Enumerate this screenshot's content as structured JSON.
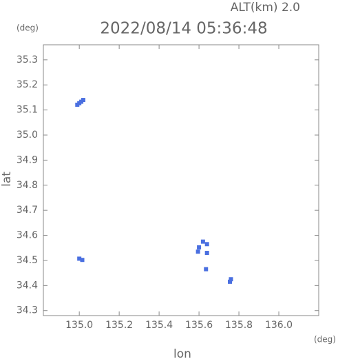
{
  "chart_data": {
    "type": "scatter",
    "title": "2022/08/14 05:36:48",
    "subtitle": "ALT(km) 2.0",
    "xlabel": "lon",
    "ylabel": "lat",
    "xunit": "(deg)",
    "yunit": "(deg)",
    "x": [
      135.02,
      135.01,
      135.0,
      134.99,
      135.0,
      135.015,
      135.6,
      135.595,
      135.62,
      135.64,
      135.64,
      135.635,
      135.76,
      135.755
    ],
    "values": [
      35.14,
      35.133,
      35.127,
      35.121,
      34.507,
      34.502,
      34.552,
      34.535,
      34.575,
      34.565,
      34.53,
      34.465,
      34.425,
      34.415
    ],
    "color": "#4a6fe0",
    "xlim": [
      134.82,
      136.2
    ],
    "ylim": [
      34.28,
      35.36
    ],
    "xticks": [
      {
        "value": 135,
        "label": "135.0"
      },
      135.2,
      135.4,
      135.6,
      135.8,
      {
        "value": 136,
        "label": "136.0"
      }
    ],
    "yticks": [
      34.3,
      34.4,
      34.5,
      34.6,
      34.7,
      34.8,
      34.9,
      {
        "value": 35,
        "label": "35.0"
      },
      35.1,
      35.2,
      35.3
    ]
  }
}
